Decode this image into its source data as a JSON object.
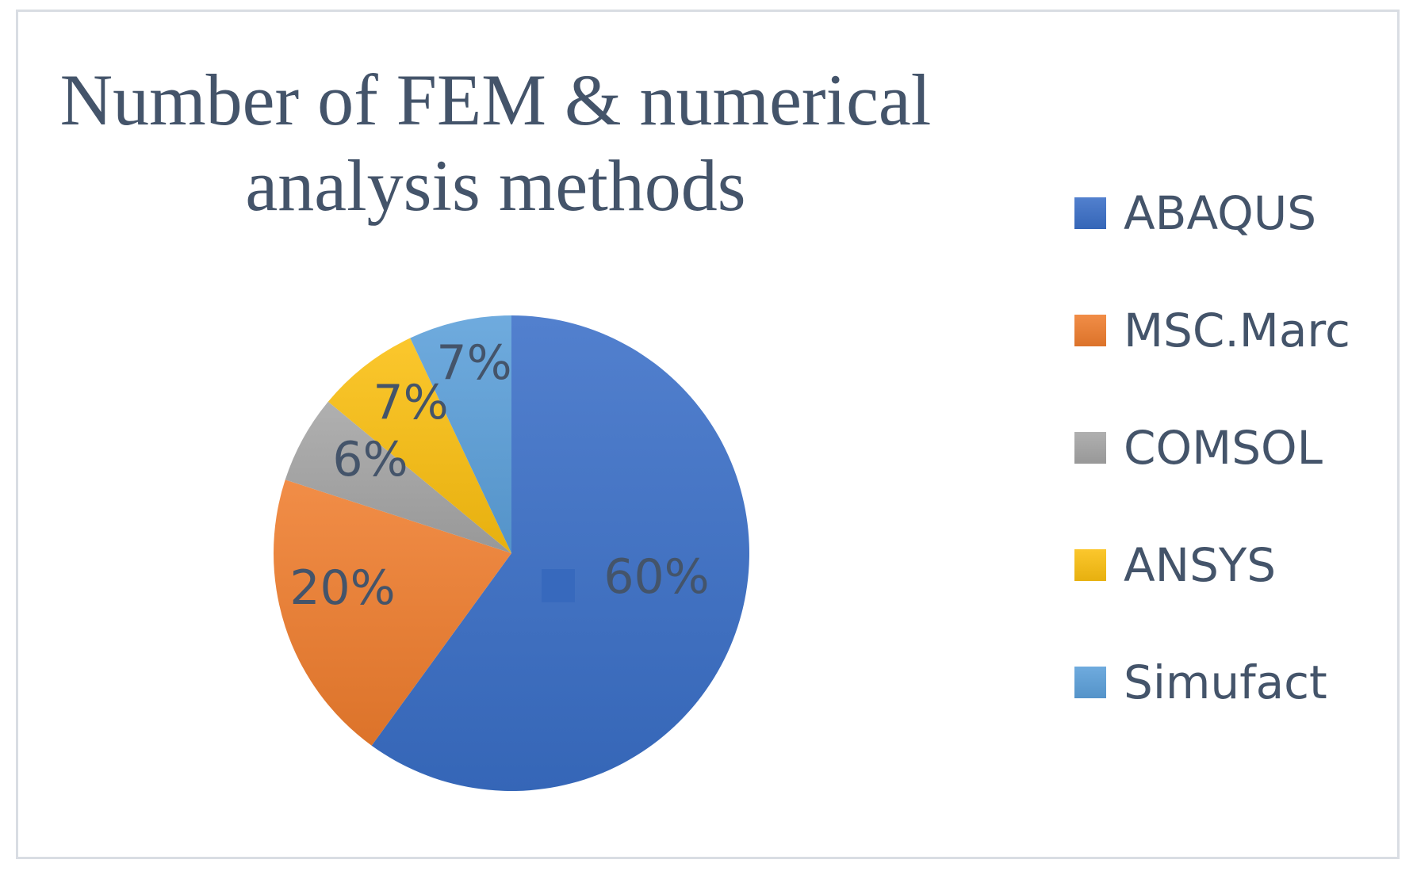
{
  "chart_data": {
    "type": "pie",
    "title_lines": [
      "Number of FEM & numerical",
      "analysis methods"
    ],
    "categories": [
      "ABAQUS",
      "MSC.Marc",
      "COMSOL",
      "ANSYS",
      "Simufact"
    ],
    "values": [
      60,
      20,
      6,
      7,
      7
    ],
    "data_labels": [
      "60%",
      "20%",
      "6%",
      "7%",
      "7%"
    ],
    "colors": [
      "#3a6fc7",
      "#ef7d2e",
      "#a5a5a5",
      "#fbbf10",
      "#5ba0da"
    ],
    "start_angle_deg": 0,
    "direction": "clockwise",
    "legend_position": "right"
  }
}
